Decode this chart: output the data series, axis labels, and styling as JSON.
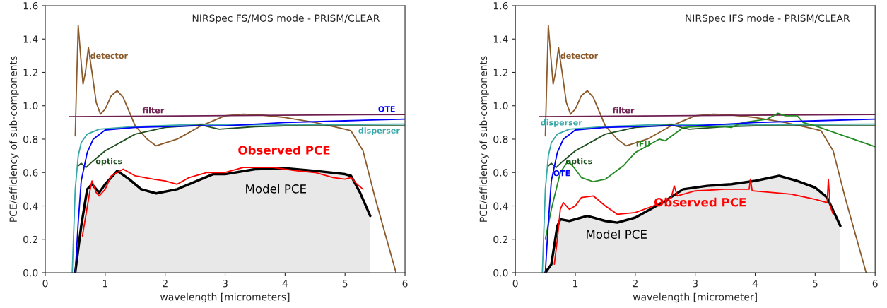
{
  "chart_data": [
    {
      "type": "line",
      "title": "NIRSpec FS/MOS mode - PRISM/CLEAR",
      "xlabel": "wavelength [micrometers]",
      "ylabel": "PCE/efficiency of sub-components",
      "xlim": [
        0,
        6
      ],
      "ylim": [
        0,
        1.6
      ],
      "xticks": [
        0,
        1,
        2,
        3,
        4,
        5,
        6
      ],
      "yticks": [
        {
          "value": 0,
          "label": "0.0"
        },
        {
          "value": 0.2,
          "label": "0.2"
        },
        {
          "value": 0.4,
          "label": "0.4"
        },
        {
          "value": 0.6,
          "label": "0.6"
        },
        {
          "value": 0.8,
          "label": "0.8"
        },
        {
          "value": 1.0,
          "label": "1.0"
        },
        {
          "value": 1.2,
          "label": "1.2"
        },
        {
          "value": 1.4,
          "label": "1.4"
        },
        {
          "value": 1.6,
          "label": "1.6"
        }
      ],
      "grid": false,
      "series": [
        {
          "type": "area",
          "name": "Model PCE",
          "color": "#000000",
          "x": [
            0.5,
            0.6,
            0.7,
            0.78,
            0.9,
            1.0,
            1.2,
            1.4,
            1.6,
            1.85,
            2.2,
            2.6,
            2.8,
            3.0,
            3.5,
            4.0,
            4.5,
            5.0,
            5.1,
            5.25,
            5.42
          ],
          "values": [
            0.0,
            0.28,
            0.5,
            0.53,
            0.48,
            0.53,
            0.61,
            0.56,
            0.5,
            0.475,
            0.5,
            0.56,
            0.59,
            0.59,
            0.62,
            0.625,
            0.61,
            0.59,
            0.58,
            0.48,
            0.34
          ]
        },
        {
          "name": "detector",
          "color": "#8b5a2b",
          "x": [
            0.5,
            0.52,
            0.55,
            0.59,
            0.63,
            0.67,
            0.72,
            0.78,
            0.85,
            0.92,
            1.0,
            1.1,
            1.2,
            1.3,
            1.5,
            1.7,
            1.85,
            2.2,
            2.6,
            3.0,
            3.3,
            3.6,
            4.0,
            4.5,
            5.0,
            5.1,
            5.3,
            5.5,
            5.85
          ],
          "values": [
            0.82,
            1.1,
            1.48,
            1.3,
            1.13,
            1.2,
            1.35,
            1.2,
            1.02,
            0.95,
            0.98,
            1.06,
            1.09,
            1.05,
            0.88,
            0.8,
            0.76,
            0.8,
            0.88,
            0.94,
            0.95,
            0.945,
            0.93,
            0.9,
            0.86,
            0.85,
            0.73,
            0.45,
            0.0
          ]
        },
        {
          "name": "filter",
          "color": "#6e1f4f",
          "x": [
            0.4,
            6.0
          ],
          "values": [
            0.935,
            0.948
          ]
        },
        {
          "name": "disperser",
          "color": "#3aa8a8",
          "x": [
            0.45,
            0.5,
            0.55,
            0.6,
            0.7,
            0.9,
            1.5,
            2.6,
            3.0,
            6.0
          ],
          "values": [
            0.0,
            0.5,
            0.7,
            0.78,
            0.83,
            0.86,
            0.875,
            0.89,
            0.885,
            0.89
          ]
        },
        {
          "name": "optics",
          "color": "#1f4f1f",
          "x": [
            0.55,
            0.6,
            0.68,
            0.8,
            1.0,
            1.5,
            2.0,
            2.6,
            2.9,
            3.5,
            4.0,
            6.0
          ],
          "values": [
            0.64,
            0.655,
            0.63,
            0.67,
            0.73,
            0.83,
            0.87,
            0.885,
            0.86,
            0.875,
            0.88,
            0.88
          ]
        },
        {
          "name": "OTE",
          "color": "#0000ff",
          "x": [
            0.5,
            0.55,
            0.6,
            0.7,
            0.8,
            1.0,
            1.5,
            2.5,
            3.0,
            4.0,
            5.0,
            6.0
          ],
          "values": [
            0.0,
            0.3,
            0.55,
            0.72,
            0.8,
            0.855,
            0.87,
            0.88,
            0.88,
            0.9,
            0.91,
            0.92
          ]
        },
        {
          "name": "Observed PCE",
          "color": "#ff0000",
          "x": [
            0.62,
            0.75,
            0.78,
            0.85,
            0.9,
            1.0,
            1.1,
            1.3,
            1.5,
            1.8,
            2.0,
            2.2,
            2.4,
            2.7,
            3.0,
            3.3,
            3.5,
            3.8,
            4.2,
            4.5,
            4.8,
            5.0,
            5.1,
            5.2,
            5.3
          ],
          "values": [
            0.22,
            0.5,
            0.55,
            0.48,
            0.46,
            0.5,
            0.58,
            0.62,
            0.58,
            0.56,
            0.55,
            0.53,
            0.57,
            0.6,
            0.6,
            0.63,
            0.63,
            0.63,
            0.61,
            0.6,
            0.57,
            0.56,
            0.57,
            0.53,
            0.5
          ]
        }
      ]
    },
    {
      "type": "line",
      "title": "NIRSpec IFS mode - PRISM/CLEAR",
      "xlabel": "wavelength [micrometer]",
      "ylabel": "PCE/efficiency of sub-components",
      "xlim": [
        0,
        6
      ],
      "ylim": [
        0,
        1.6
      ],
      "xticks": [
        0,
        1,
        2,
        3,
        4,
        5,
        6
      ],
      "yticks": [
        {
          "value": 0,
          "label": "0.0"
        },
        {
          "value": 0.2,
          "label": "0.2"
        },
        {
          "value": 0.4,
          "label": "0.4"
        },
        {
          "value": 0.6,
          "label": "0.6"
        },
        {
          "value": 0.8,
          "label": "0.8"
        },
        {
          "value": 1.0,
          "label": "1.0"
        },
        {
          "value": 1.2,
          "label": "1.2"
        },
        {
          "value": 1.4,
          "label": "1.4"
        },
        {
          "value": 1.6,
          "label": "1.6"
        }
      ],
      "grid": false,
      "series": [
        {
          "type": "area",
          "name": "Model PCE",
          "color": "#000000",
          "x": [
            0.5,
            0.6,
            0.7,
            0.75,
            0.9,
            1.2,
            1.5,
            1.7,
            2.0,
            2.5,
            2.8,
            3.2,
            3.6,
            4.0,
            4.4,
            4.7,
            5.0,
            5.2,
            5.42
          ],
          "values": [
            0.0,
            0.05,
            0.28,
            0.32,
            0.31,
            0.34,
            0.31,
            0.3,
            0.33,
            0.43,
            0.5,
            0.52,
            0.53,
            0.55,
            0.58,
            0.55,
            0.51,
            0.45,
            0.28
          ]
        },
        {
          "name": "detector",
          "color": "#8b5a2b",
          "x": [
            0.5,
            0.52,
            0.55,
            0.59,
            0.63,
            0.67,
            0.72,
            0.78,
            0.85,
            0.92,
            1.0,
            1.1,
            1.2,
            1.3,
            1.5,
            1.7,
            1.85,
            2.2,
            2.6,
            3.0,
            3.3,
            3.6,
            4.0,
            4.5,
            5.0,
            5.1,
            5.3,
            5.5,
            5.85
          ],
          "values": [
            0.82,
            1.1,
            1.48,
            1.3,
            1.13,
            1.2,
            1.35,
            1.2,
            1.02,
            0.95,
            0.98,
            1.06,
            1.09,
            1.05,
            0.88,
            0.8,
            0.76,
            0.8,
            0.88,
            0.94,
            0.95,
            0.945,
            0.93,
            0.9,
            0.86,
            0.85,
            0.73,
            0.45,
            0.0
          ]
        },
        {
          "name": "filter",
          "color": "#6e1f4f",
          "x": [
            0.4,
            6.0
          ],
          "values": [
            0.935,
            0.948
          ]
        },
        {
          "name": "disperser",
          "color": "#3aa8a8",
          "x": [
            0.45,
            0.5,
            0.55,
            0.6,
            0.7,
            0.9,
            1.5,
            2.6,
            3.0,
            6.0
          ],
          "values": [
            0.0,
            0.5,
            0.7,
            0.78,
            0.83,
            0.86,
            0.875,
            0.89,
            0.885,
            0.89
          ]
        },
        {
          "name": "optics",
          "color": "#1f4f1f",
          "x": [
            0.55,
            0.6,
            0.68,
            0.8,
            1.0,
            1.5,
            2.0,
            2.6,
            2.9,
            3.5,
            4.0,
            6.0
          ],
          "values": [
            0.64,
            0.655,
            0.63,
            0.67,
            0.73,
            0.83,
            0.87,
            0.885,
            0.86,
            0.875,
            0.88,
            0.88
          ]
        },
        {
          "name": "IFU",
          "color": "#228b22",
          "x": [
            0.5,
            0.6,
            0.75,
            0.88,
            1.0,
            1.1,
            1.3,
            1.5,
            1.8,
            2.0,
            2.2,
            2.4,
            2.5,
            2.8,
            3.0,
            3.5,
            3.6,
            3.8,
            4.2,
            4.38,
            4.5,
            4.7,
            4.8,
            5.0,
            6.0
          ],
          "values": [
            0.2,
            0.38,
            0.6,
            0.67,
            0.62,
            0.57,
            0.545,
            0.56,
            0.64,
            0.72,
            0.76,
            0.8,
            0.79,
            0.87,
            0.875,
            0.875,
            0.87,
            0.9,
            0.92,
            0.955,
            0.94,
            0.94,
            0.9,
            0.88,
            0.755
          ]
        },
        {
          "name": "OTE",
          "color": "#0000ff",
          "x": [
            0.5,
            0.55,
            0.6,
            0.7,
            0.8,
            1.0,
            1.5,
            2.5,
            3.0,
            4.0,
            5.0,
            6.0
          ],
          "values": [
            0.0,
            0.3,
            0.55,
            0.72,
            0.8,
            0.855,
            0.87,
            0.88,
            0.88,
            0.9,
            0.91,
            0.92
          ]
        },
        {
          "name": "Observed PCE",
          "color": "#ff0000",
          "x": [
            0.65,
            0.7,
            0.75,
            0.8,
            0.9,
            1.0,
            1.1,
            1.3,
            1.5,
            1.7,
            2.0,
            2.3,
            2.6,
            2.65,
            2.7,
            3.0,
            3.5,
            3.9,
            3.92,
            3.95,
            4.3,
            4.6,
            5.0,
            5.2,
            5.22,
            5.25,
            5.3
          ],
          "values": [
            0.05,
            0.2,
            0.38,
            0.42,
            0.38,
            0.4,
            0.45,
            0.46,
            0.4,
            0.35,
            0.36,
            0.4,
            0.45,
            0.52,
            0.46,
            0.49,
            0.5,
            0.5,
            0.56,
            0.49,
            0.48,
            0.47,
            0.44,
            0.42,
            0.56,
            0.4,
            0.35
          ]
        }
      ]
    }
  ]
}
